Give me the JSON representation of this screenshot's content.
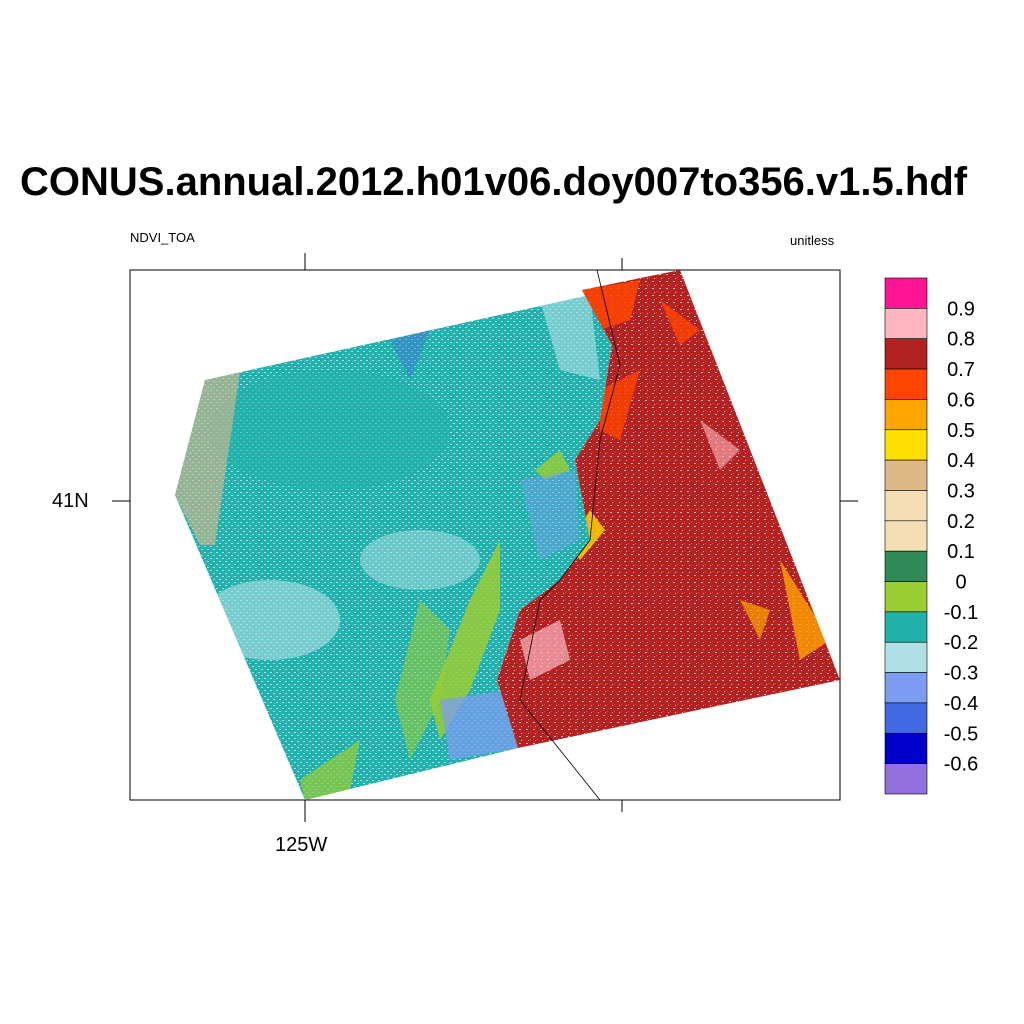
{
  "title": "CONUS.annual.2012.h01v06.doy007to356.v1.5.hdf",
  "left_string": "NDVI_TOA",
  "right_string": "unitless",
  "axes": {
    "lat_label": "41N",
    "lon_label": "125W"
  },
  "colorbar": {
    "labels": [
      "0.9",
      "0.8",
      "0.7",
      "0.6",
      "0.5",
      "0.4",
      "0.3",
      "0.2",
      "0.1",
      "0",
      "-0.1",
      "-0.2",
      "-0.3",
      "-0.4",
      "-0.5",
      "-0.6"
    ],
    "colors": [
      "#ff1493",
      "#ffb6c1",
      "#b22222",
      "#ff4500",
      "#ffa500",
      "#ffdf00",
      "#deb887",
      "#f5deb3",
      "#f5deb3",
      "#2e8b57",
      "#9acd32",
      "#20b2aa",
      "#b0e0e6",
      "#7b9cf0",
      "#4169e1",
      "#0000cd",
      "#9370db"
    ]
  },
  "colors": {
    "ocean_teal": "#20b2aa",
    "ocean_light": "#b0e0e6",
    "land_red": "#b22222",
    "land_pink": "#ffb6c1",
    "land_orange": "#ff4500"
  }
}
